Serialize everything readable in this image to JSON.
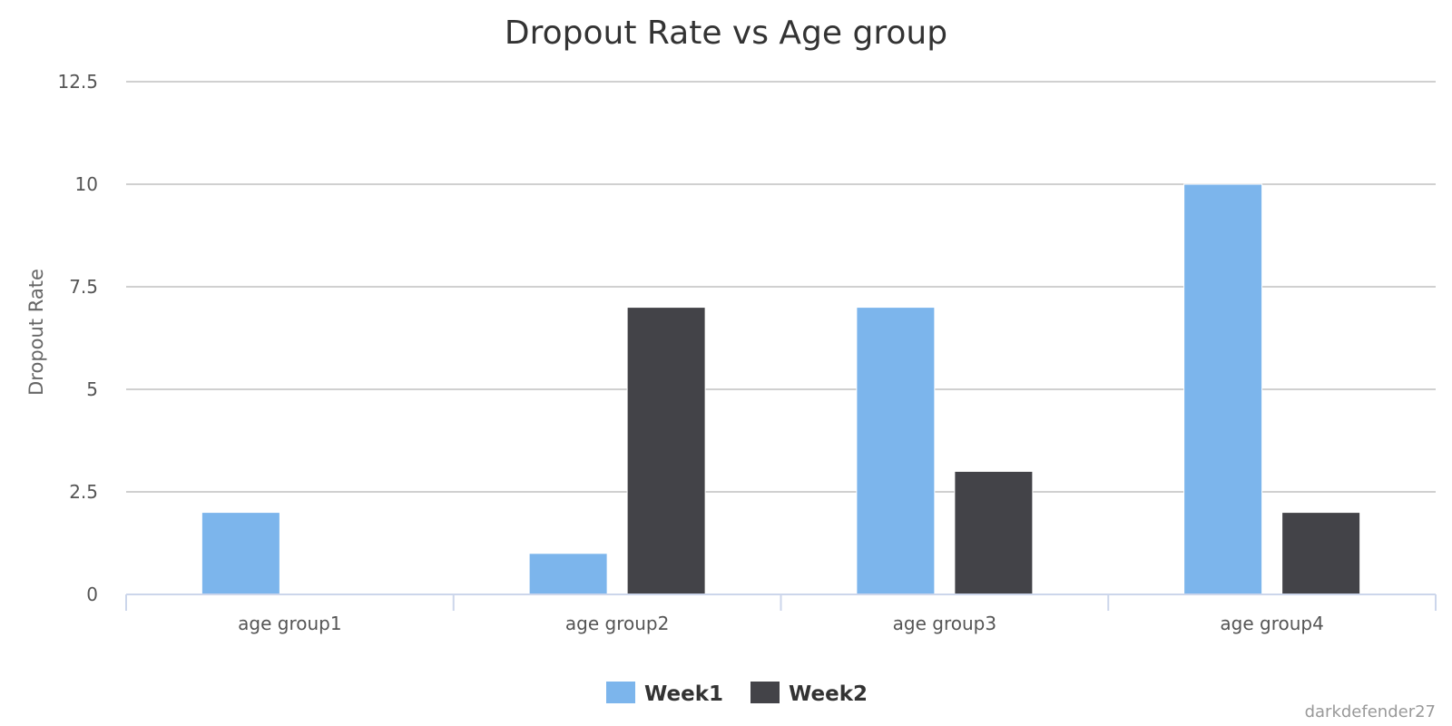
{
  "chart_data": {
    "type": "bar",
    "title": "Dropout Rate vs Age group",
    "ylabel": "Dropout Rate",
    "xlabel": "",
    "categories": [
      "age group1",
      "age group2",
      "age group3",
      "age group4"
    ],
    "series": [
      {
        "name": "Week1",
        "color": "#7cb5ec",
        "values": [
          2,
          1,
          7,
          10
        ]
      },
      {
        "name": "Week2",
        "color": "#434348",
        "values": [
          0,
          7,
          3,
          2
        ]
      }
    ],
    "ylim": [
      0,
      12.5
    ],
    "yticks": [
      "0",
      "2.5",
      "5",
      "7.5",
      "10",
      "12.5"
    ],
    "grid": true,
    "legend_position": "bottom-center"
  },
  "credit": "darkdefender27"
}
